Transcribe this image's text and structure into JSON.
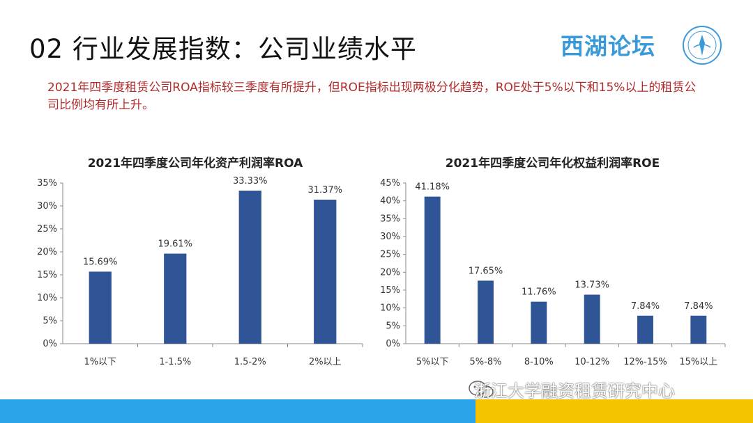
{
  "header": {
    "title": "02 行业发展指数：公司业绩水平",
    "logo_text": "西湖论坛"
  },
  "summary": "2021年四季度租赁公司ROA指标较三季度有所提升，但ROE指标出现两极分化趋势，ROE处于5%以下和15%以上的租赁公司比例均有所上升。",
  "footer": {
    "watermark": "浙江大学融资租赁研究中心"
  },
  "colors": {
    "bar": "#2f5597",
    "summary_text": "#b22b2b",
    "logo": "#3a9ad9",
    "footer_blue": "#2aa3e8",
    "footer_yellow": "#f5c400"
  },
  "chart_data": [
    {
      "type": "bar",
      "title": "2021年四季度公司年化资产利润率ROA",
      "categories": [
        "1%以下",
        "1-1.5%",
        "1.5-2%",
        "2%以上"
      ],
      "values": [
        15.69,
        19.61,
        33.33,
        31.37
      ],
      "value_labels": [
        "15.69%",
        "19.61%",
        "33.33%",
        "31.37%"
      ],
      "ylim": [
        0,
        35
      ],
      "yticks": [
        0,
        5,
        10,
        15,
        20,
        25,
        30,
        35
      ],
      "ytick_labels": [
        "0%",
        "5%",
        "10%",
        "15%",
        "20%",
        "25%",
        "30%",
        "35%"
      ],
      "grid": false
    },
    {
      "type": "bar",
      "title": "2021年四季度公司年化权益利润率ROE",
      "categories": [
        "5%以下",
        "5%-8%",
        "8-10%",
        "10-12%",
        "12%-15%",
        "15%以上"
      ],
      "values": [
        41.18,
        17.65,
        11.76,
        13.73,
        7.84,
        7.84
      ],
      "value_labels": [
        "41.18%",
        "17.65%",
        "11.76%",
        "13.73%",
        "7.84%",
        "7.84%"
      ],
      "ylim": [
        0,
        45
      ],
      "yticks": [
        0,
        5,
        10,
        15,
        20,
        25,
        30,
        35,
        40,
        45
      ],
      "ytick_labels": [
        "0%",
        "5%",
        "10%",
        "15%",
        "20%",
        "25%",
        "30%",
        "35%",
        "40%",
        "45%"
      ],
      "grid": false
    }
  ]
}
